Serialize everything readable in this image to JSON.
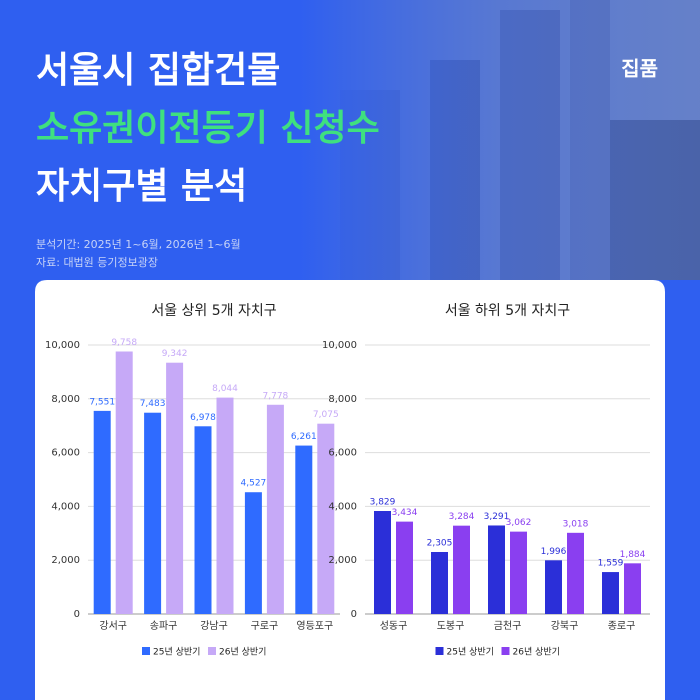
{
  "header": {
    "title_line1": "서울시 집합건물",
    "title_line2": "소유권이전등기 신청수",
    "title_line3": "자치구별 분석",
    "logo": "집품",
    "period": "분석기간: 2025년 1~6월, 2026년 1~6월",
    "source": "자료: 대법원 등기정보광장"
  },
  "chart_data": [
    {
      "type": "bar",
      "title": "서울 상위 5개 자치구",
      "categories": [
        "강서구",
        "송파구",
        "강남구",
        "구로구",
        "영등포구"
      ],
      "series": [
        {
          "name": "25년 상반기",
          "color": "#2f6bff",
          "values": [
            7551,
            7483,
            6978,
            4527,
            6261
          ],
          "value_labels": [
            "7,551",
            "7,483",
            "6,978",
            "4,527",
            "6,261"
          ]
        },
        {
          "name": "26년 상반기",
          "color": "#c6a9f7",
          "values": [
            9758,
            9342,
            8044,
            7778,
            7075
          ],
          "value_labels": [
            "9,758",
            "9,342",
            "8,044",
            "7,778",
            "7,075"
          ]
        }
      ],
      "ylim": [
        0,
        10000
      ],
      "yticks": [
        0,
        {
          "value": 2000,
          "label": "2,000"
        },
        {
          "value": 4000,
          "label": "4,000"
        },
        {
          "value": 6000,
          "label": "6,000"
        },
        {
          "value": 8000,
          "label": "8,000"
        },
        {
          "value": 10000,
          "label": "10,000"
        }
      ],
      "grid": true,
      "legend": "bottom"
    },
    {
      "type": "bar",
      "title": "서울 하위 5개 자치구",
      "categories": [
        "성동구",
        "도봉구",
        "금천구",
        "강북구",
        "종로구"
      ],
      "series": [
        {
          "name": "25년 상반기",
          "color": "#2b2fd8",
          "values": [
            3829,
            2305,
            3291,
            1996,
            1559
          ],
          "value_labels": [
            "3,829",
            "2,305",
            "3,291",
            "1,996",
            "1,559"
          ]
        },
        {
          "name": "26년 상반기",
          "color": "#8a3ff0",
          "values": [
            3434,
            3284,
            3062,
            3018,
            1884
          ],
          "value_labels": [
            "3,434",
            "3,284",
            "3,062",
            "3,018",
            "1,884"
          ]
        }
      ],
      "ylim": [
        0,
        10000
      ],
      "yticks": [
        0,
        {
          "value": 2000,
          "label": "2,000"
        },
        {
          "value": 4000,
          "label": "4,000"
        },
        {
          "value": 6000,
          "label": "6,000"
        },
        {
          "value": 8000,
          "label": "8,000"
        },
        {
          "value": 10000,
          "label": "10,000"
        }
      ],
      "grid": true,
      "legend": "bottom"
    }
  ]
}
